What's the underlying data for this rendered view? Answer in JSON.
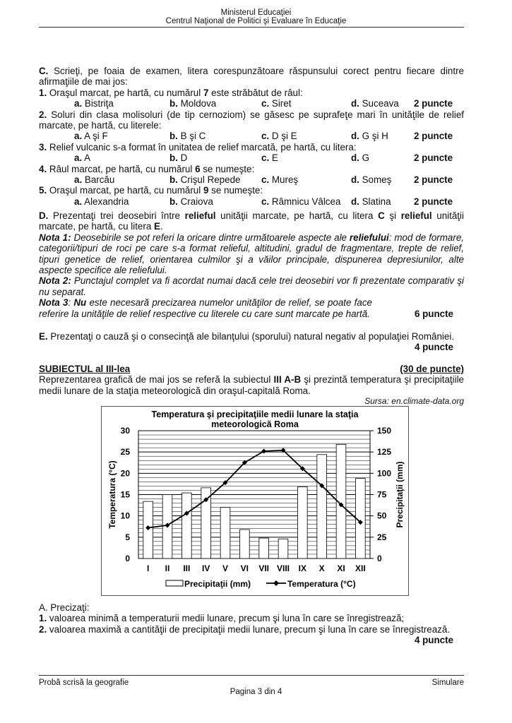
{
  "header": {
    "ministry": "Ministerul Educaţiei",
    "center": "Centrul Naţional de Politici şi Evaluare în Educaţie"
  },
  "sectionC": {
    "intro": [
      [
        "C.",
        "b"
      ],
      [
        " Scrieţi, pe foaia de examen, litera corespunzătoare răspunsului corect pentru fiecare dintre afirmaţiile de mai jos:",
        ""
      ]
    ],
    "questions": [
      {
        "text": [
          [
            "1.",
            "b"
          ],
          [
            " Oraşul marcat, pe hartă, cu numărul ",
            ""
          ],
          [
            "7",
            "b"
          ],
          [
            " este străbătut de râul:",
            ""
          ]
        ],
        "options": [
          "Bistriţa",
          "Moldova",
          "Siret",
          "Suceava"
        ],
        "points": "2 puncte"
      },
      {
        "text": [
          [
            "2.",
            "b"
          ],
          [
            " Soluri din clasa molisoluri (de tip cernoziom) se găsesc pe suprafeţe mari în unităţile de relief marcate, pe hartă, cu literele:",
            ""
          ]
        ],
        "options": [
          "A şi F",
          "B şi C",
          "D şi E",
          "G şi H"
        ],
        "points": "2 puncte"
      },
      {
        "text": [
          [
            "3.",
            "b"
          ],
          [
            " Relief vulcanic s-a format în unitatea de relief marcată, pe hartă, cu litera:",
            ""
          ]
        ],
        "options": [
          "A",
          "D",
          "E",
          "G"
        ],
        "points": "2 puncte"
      },
      {
        "text": [
          [
            "4.",
            "b"
          ],
          [
            " Râul marcat, pe hartă, cu numărul ",
            ""
          ],
          [
            "6",
            "b"
          ],
          [
            " se numeşte:",
            ""
          ]
        ],
        "options": [
          "Barcău",
          "Crişul Repede",
          "Mureş",
          "Someş"
        ],
        "points": "2 puncte"
      },
      {
        "text": [
          [
            "5.",
            "b"
          ],
          [
            " Oraşul marcat, pe hartă, cu numărul ",
            ""
          ],
          [
            "9",
            "b"
          ],
          [
            " se numeşte:",
            ""
          ]
        ],
        "options": [
          "Alexandria",
          "Craiova",
          "Râmnicu Vâlcea",
          "Slatina"
        ],
        "points": "2 puncte"
      }
    ],
    "letters": [
      "a.",
      "b.",
      "c.",
      "d."
    ]
  },
  "sectionD": {
    "text": [
      [
        "D.",
        "b"
      ],
      [
        " Prezentaţi trei deosebiri între ",
        ""
      ],
      [
        "relieful",
        "b"
      ],
      [
        " unităţii marcate, pe hartă, cu litera ",
        ""
      ],
      [
        "C",
        "b"
      ],
      [
        " şi ",
        ""
      ],
      [
        "relieful",
        "b"
      ],
      [
        " unităţii marcate, pe hartă, cu litera ",
        ""
      ],
      [
        "E",
        "b"
      ],
      [
        ".",
        ""
      ]
    ],
    "note1": [
      [
        "Nota 1:",
        "b it"
      ],
      [
        " Deosebirile se pot referi la oricare dintre următoarele aspecte ale ",
        "it"
      ],
      [
        "reliefului",
        "b it"
      ],
      [
        ": mod de formare, categorii/tipuri de roci pe care s-a format relieful, altitudini,  gradul de fragmentare, trepte de relief, tipuri genetice de relief, orientarea culmilor şi a văilor principale, dispunerea depresiunilor, alte aspecte specifice ale reliefului.",
        "it"
      ]
    ],
    "note2": [
      [
        "Nota 2:",
        "b it"
      ],
      [
        " Punctajul complet va fi acordat numai dacă cele trei deosebiri vor fi prezentate comparativ şi nu separat.",
        "it"
      ]
    ],
    "note3": [
      [
        "Nota 3",
        "b it"
      ],
      [
        ": ",
        "it"
      ],
      [
        "Nu",
        "b it"
      ],
      [
        " este necesară precizarea numelor unităţilor de relief, se poate face referire la unităţile de relief respective cu literele cu care sunt marcate pe hartă.",
        "it"
      ]
    ],
    "points": "6 puncte"
  },
  "sectionE": {
    "text": [
      [
        "E.",
        "b"
      ],
      [
        " Prezentaţi o cauză şi o consecinţă ale bilanţului (sporului) natural negativ al populaţiei României.",
        ""
      ]
    ],
    "points": "4 puncte"
  },
  "subject3": {
    "title": "SUBIECTUL al III-lea",
    "points": "(30 de puncte)",
    "intro": [
      [
        "Reprezentarea grafică de mai jos se referă la subiectul ",
        ""
      ],
      [
        "III A-B",
        "b"
      ],
      [
        " şi prezintă temperatura şi precipitaţiile medii lunare de la staţia meteorologică din oraşul-capitală Roma.",
        ""
      ]
    ],
    "source": "Sursa: en.climate-data.org"
  },
  "chart_data": {
    "type": "bar+line",
    "title": "Temperatura şi precipitaţiile medii lunare la staţia meteorologică Roma",
    "categories": [
      "I",
      "II",
      "III",
      "IV",
      "V",
      "VI",
      "VII",
      "VIII",
      "IX",
      "X",
      "XI",
      "XII"
    ],
    "series": [
      {
        "name": "Precipitaţii (mm)",
        "type": "bar",
        "axis": "right",
        "values": [
          67,
          75,
          77,
          83,
          60,
          34,
          24,
          23,
          84,
          122,
          134,
          94
        ]
      },
      {
        "name": "Temperatura (°C)",
        "type": "line",
        "axis": "left",
        "values": [
          7.2,
          7.8,
          10.6,
          13.8,
          17.8,
          22.5,
          25.2,
          25.4,
          21.1,
          17.1,
          12.6,
          8.5
        ]
      }
    ],
    "ylabel_left": "Temperatura (°C)",
    "ylim_left": [
      0,
      30
    ],
    "yticks_left": [
      "0",
      "5",
      "10",
      "15",
      "20",
      "25",
      "30"
    ],
    "ylabel_right": "Precipitaţii (mm)",
    "ylim_right": [
      0,
      150
    ],
    "yticks_right": [
      "0",
      "25",
      "50",
      "75",
      "100",
      "125",
      "150"
    ],
    "grid": true,
    "legend": "bottom"
  },
  "sectionA": {
    "title": "A. Precizaţi:",
    "items": [
      [
        [
          "1.",
          "b"
        ],
        [
          " valoarea minimă a temperaturii medii lunare, precum şi luna în care se înregistrează;",
          ""
        ]
      ],
      [
        [
          "2.",
          "b"
        ],
        [
          " valoarea maximă a cantităţii de precipitaţii medii lunare, precum şi luna în care se înregistrează.",
          ""
        ]
      ]
    ],
    "points": "4 puncte"
  },
  "footer": {
    "left": "Probă scrisă la geografie",
    "right": "Simulare",
    "page": "Pagina 3 din 4"
  }
}
